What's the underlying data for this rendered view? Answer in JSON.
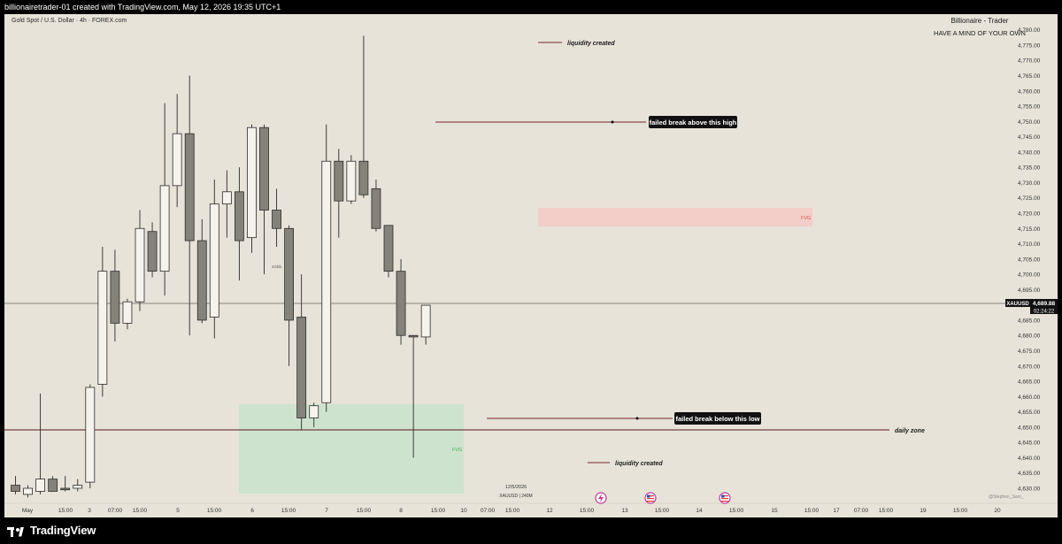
{
  "header_text": "billionairetrader-01 created with TradingView.com, May 12, 2026 19:35 UTC+1",
  "symbol_title": "Gold Spot / U.S. Dollar · 4h · FOREX.com",
  "brand_name": "Billionaire - Trader",
  "brand_tagline": "HAVE A MIND OF YOUR OWN",
  "footer_logo": "TradingView",
  "watermark": "@Stephen_Sam_",
  "price_badge": {
    "symbol": "XAUUSD",
    "price": "4,689.88",
    "countdown": "02:24:22"
  },
  "colors": {
    "bull": "#f6f3ec",
    "bear": "#858279",
    "fvg_red": "#f4c9c4",
    "fvg_green": "#c9e3cb"
  },
  "chart_data": {
    "type": "candlestick",
    "title": "Gold Spot / U.S. Dollar · 4h · FOREX.com",
    "ylim": [
      4627,
      4786
    ],
    "y_ticks": [
      "4,780.00",
      "4,775.00",
      "4,770.00",
      "4,765.00",
      "4,760.00",
      "4,755.00",
      "4,750.00",
      "4,745.00",
      "4,740.00",
      "4,735.00",
      "4,730.00",
      "4,725.00",
      "4,720.00",
      "4,715.00",
      "4,710.00",
      "4,705.00",
      "4,700.00",
      "4,695.00",
      "4,690.00",
      "4,685.00",
      "4,680.00",
      "4,675.00",
      "4,670.00",
      "4,665.00",
      "4,660.00",
      "4,655.00",
      "4,650.00",
      "4,645.00",
      "4,640.00",
      "4,635.00",
      "4,630.00"
    ],
    "x_ticks": [
      "May",
      "15:00",
      "3",
      "07:00",
      "15:00",
      "5",
      "15:00",
      "6",
      "15:00",
      "7",
      "15:00",
      "8",
      "15:00",
      "10",
      "07:00",
      "15:00",
      "12",
      "15:00",
      "13",
      "15:00",
      "14",
      "15:00",
      "15",
      "15:00",
      "17",
      "07:00",
      "15:00",
      "19",
      "15:00",
      "20"
    ],
    "candles": [
      {
        "o": 4631.0,
        "h": 4634.0,
        "l": 4628.0,
        "c": 4629.0
      },
      {
        "o": 4628.0,
        "h": 4631.0,
        "l": 4627.0,
        "c": 4630.0
      },
      {
        "o": 4629.0,
        "h": 4661.0,
        "l": 4628.0,
        "c": 4633.0
      },
      {
        "o": 4633.0,
        "h": 4634.0,
        "l": 4629.0,
        "c": 4629.0
      },
      {
        "o": 4630.0,
        "h": 4634.0,
        "l": 4629.0,
        "c": 4629.5
      },
      {
        "o": 4630.0,
        "h": 4633.0,
        "l": 4629.0,
        "c": 4631.0
      },
      {
        "o": 4632.0,
        "h": 4664.0,
        "l": 4630.0,
        "c": 4663.0
      },
      {
        "o": 4664.0,
        "h": 4709.0,
        "l": 4660.0,
        "c": 4701.0
      },
      {
        "o": 4701.0,
        "h": 4708.0,
        "l": 4678.0,
        "c": 4684.0
      },
      {
        "o": 4684.0,
        "h": 4692.0,
        "l": 4682.0,
        "c": 4691.0
      },
      {
        "o": 4691.0,
        "h": 4721.0,
        "l": 4688.0,
        "c": 4715.0
      },
      {
        "o": 4714.0,
        "h": 4717.0,
        "l": 4699.0,
        "c": 4701.0
      },
      {
        "o": 4701.0,
        "h": 4756.0,
        "l": 4693.0,
        "c": 4729.0
      },
      {
        "o": 4729.0,
        "h": 4759.0,
        "l": 4722.0,
        "c": 4746.0
      },
      {
        "o": 4746.0,
        "h": 4765.0,
        "l": 4680.0,
        "c": 4711.0
      },
      {
        "o": 4711.0,
        "h": 4718.0,
        "l": 4684.0,
        "c": 4685.0
      },
      {
        "o": 4686.0,
        "h": 4731.0,
        "l": 4679.0,
        "c": 4723.0
      },
      {
        "o": 4723.0,
        "h": 4734.0,
        "l": 4712.0,
        "c": 4727.0
      },
      {
        "o": 4727.0,
        "h": 4735.0,
        "l": 4698.0,
        "c": 4711.0
      },
      {
        "o": 4712.0,
        "h": 4749.0,
        "l": 4707.0,
        "c": 4748.0
      },
      {
        "o": 4748.0,
        "h": 4749.0,
        "l": 4700.0,
        "c": 4721.0
      },
      {
        "o": 4721.0,
        "h": 4728.0,
        "l": 4709.0,
        "c": 4715.0
      },
      {
        "o": 4715.0,
        "h": 4716.0,
        "l": 4670.0,
        "c": 4685.0
      },
      {
        "o": 4686.0,
        "h": 4700.0,
        "l": 4649.0,
        "c": 4653.0
      },
      {
        "o": 4653.0,
        "h": 4658.0,
        "l": 4650.0,
        "c": 4657.0
      },
      {
        "o": 4658.0,
        "h": 4749.0,
        "l": 4655.0,
        "c": 4737.0
      },
      {
        "o": 4737.0,
        "h": 4741.0,
        "l": 4712.0,
        "c": 4724.0
      },
      {
        "o": 4724.0,
        "h": 4739.0,
        "l": 4723.0,
        "c": 4737.0
      },
      {
        "o": 4737.0,
        "h": 4778.0,
        "l": 4725.0,
        "c": 4726.0
      },
      {
        "o": 4728.0,
        "h": 4731.0,
        "l": 4714.0,
        "c": 4715.0
      },
      {
        "o": 4716.0,
        "h": 4716.0,
        "l": 4699.0,
        "c": 4701.0
      },
      {
        "o": 4701.0,
        "h": 4705.0,
        "l": 4677.0,
        "c": 4680.0
      },
      {
        "o": 4680.0,
        "h": 4680.0,
        "l": 4640.0,
        "c": 4679.5
      },
      {
        "o": 4679.5,
        "h": 4690.0,
        "l": 4677.0,
        "c": 4689.88
      }
    ]
  },
  "annotations": {
    "liquidity_top": "liquidity created",
    "failed_high": "failed break above this high",
    "failed_low": "failed break below this low",
    "daily_zone": "daily zone",
    "liquidity_bottom": "liquidity created",
    "fvg_red_label": "FVG",
    "fvg_green_label": "FVG",
    "small_label": "4Gbb",
    "date_label": "12/5/2026",
    "date_sublabel": "XAUUSD | 240M"
  }
}
